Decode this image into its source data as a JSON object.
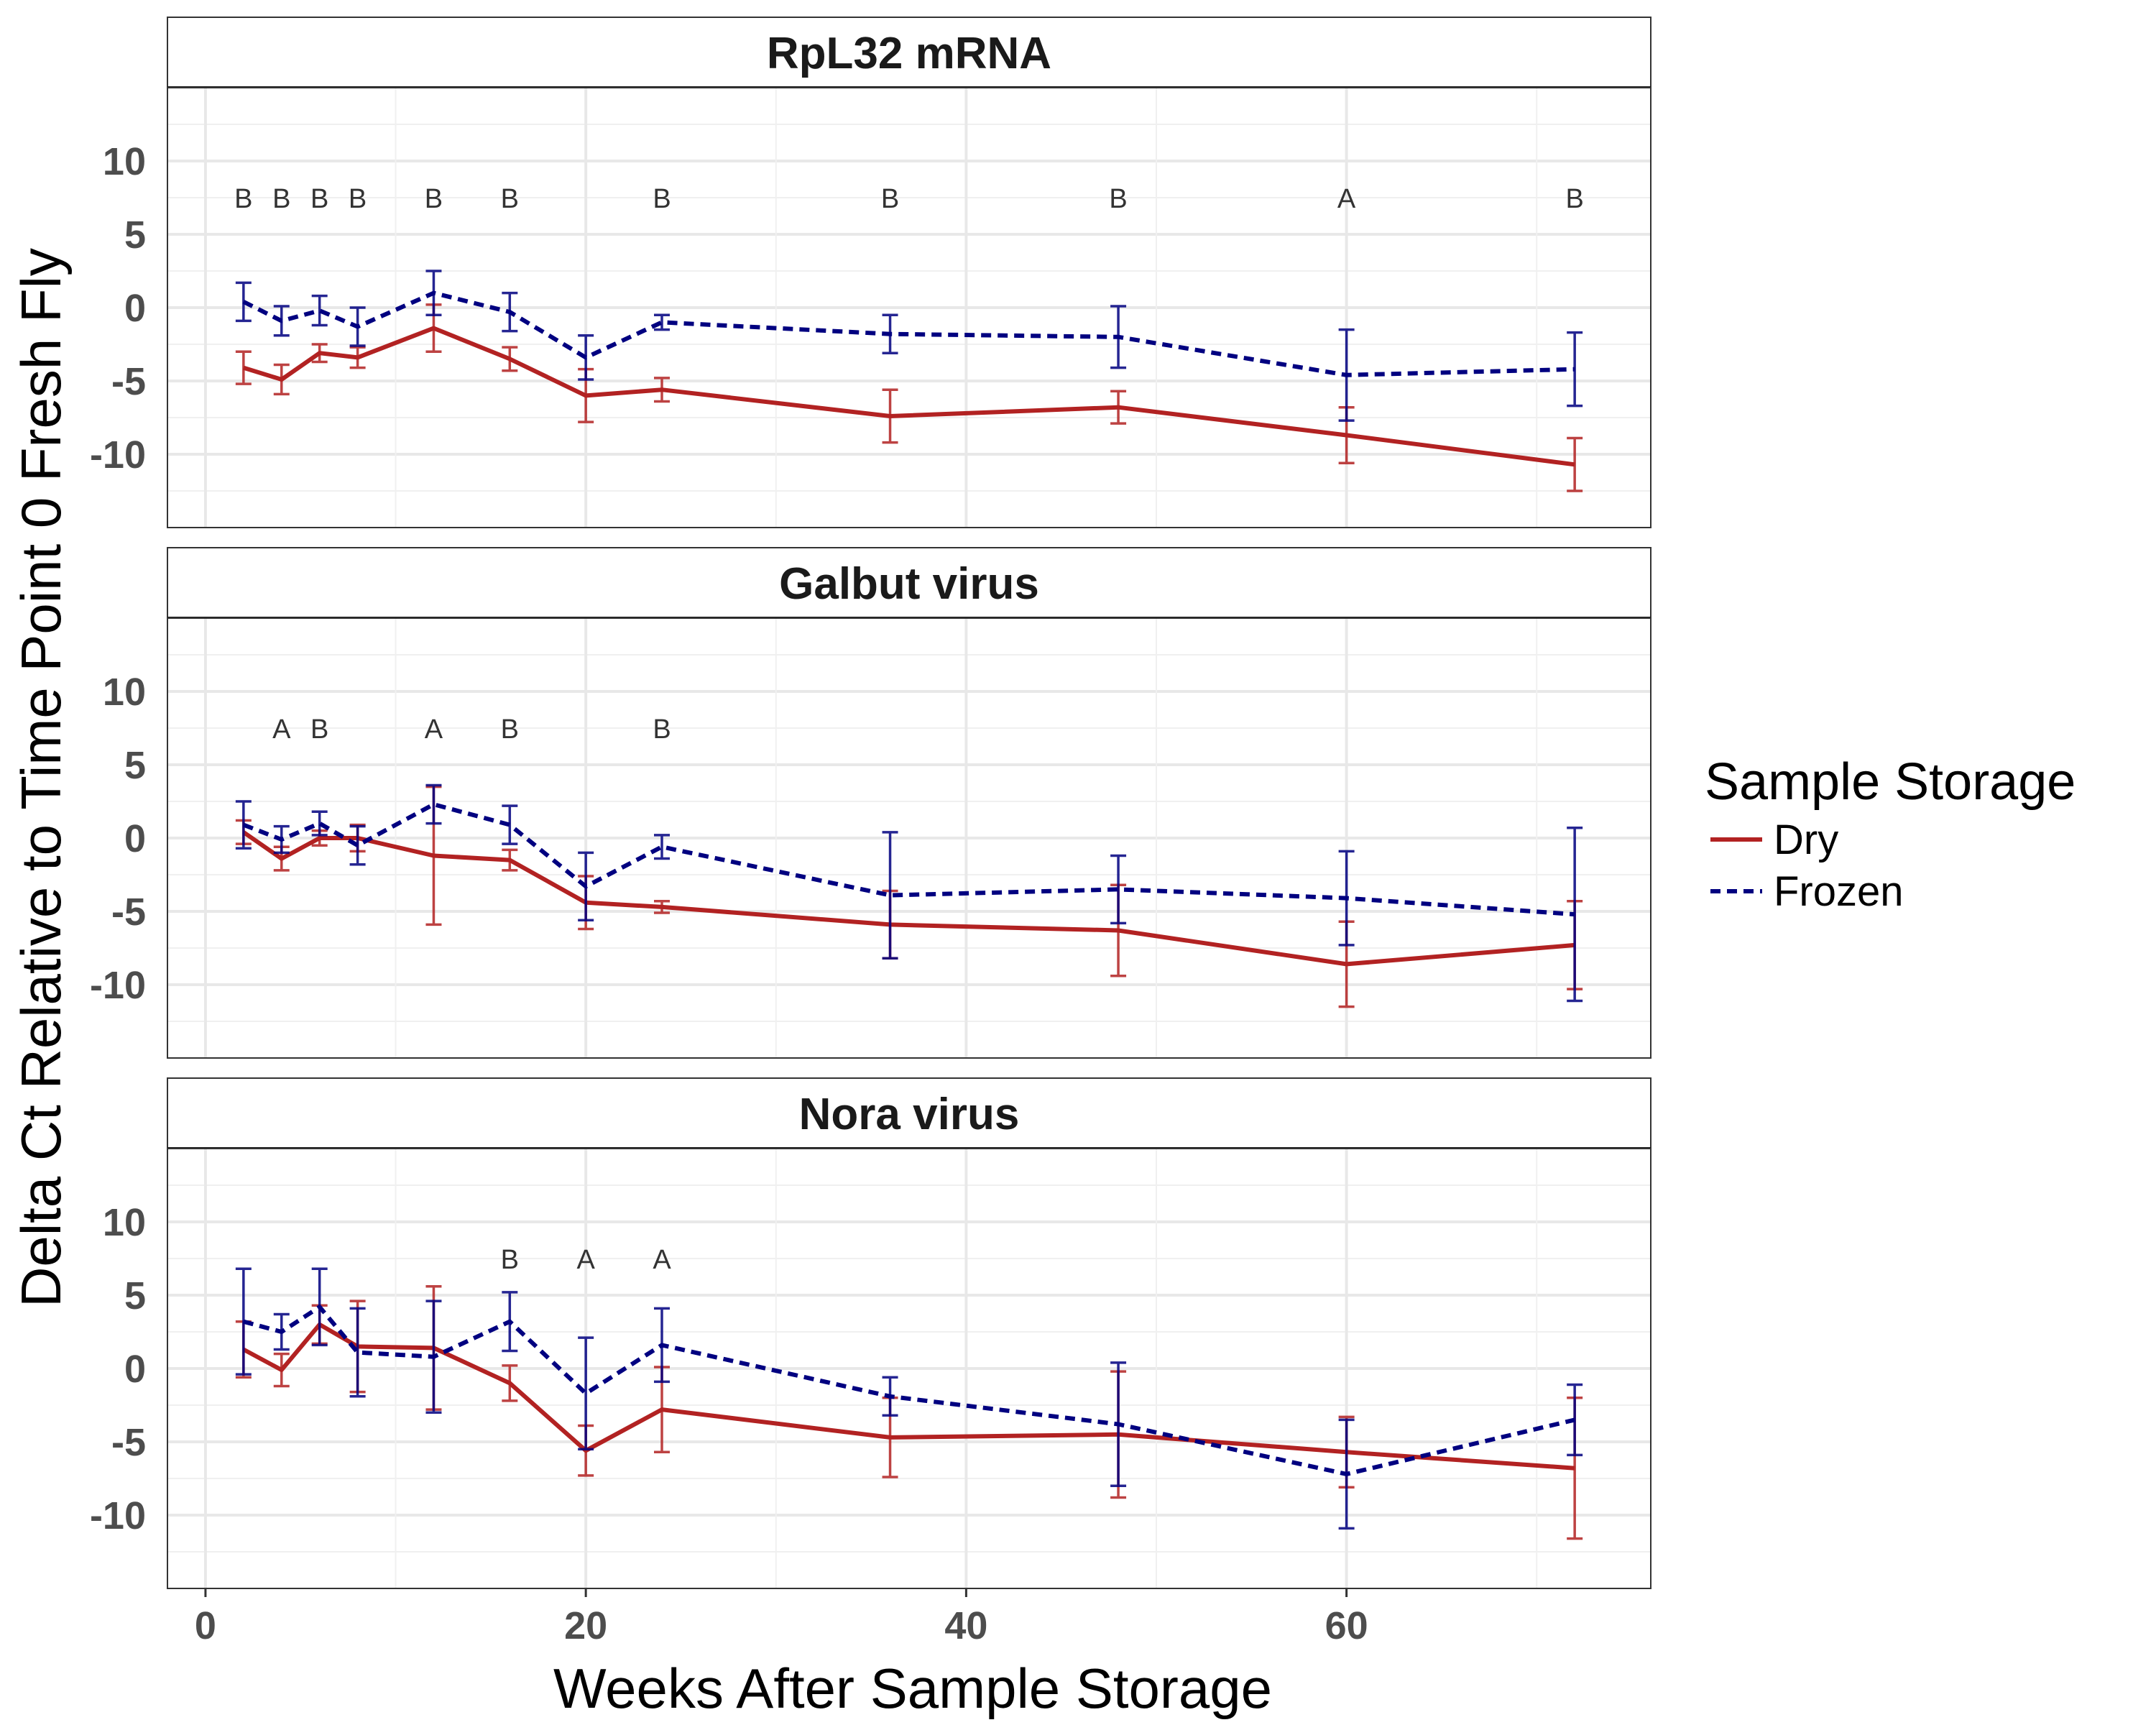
{
  "chart_data": {
    "type": "line",
    "xlabel": "Weeks After Sample Storage",
    "ylabel": "Delta Ct Relative to Time Point 0 Fresh Fly",
    "xlim": [
      -2,
      76
    ],
    "ylim": [
      -15,
      15
    ],
    "x_ticks": [
      0,
      20,
      40,
      60
    ],
    "y_ticks": [
      10,
      5,
      0,
      -5,
      -10
    ],
    "grid": true,
    "legend": {
      "title": "Sample Storage",
      "position": "right",
      "entries": [
        {
          "label": "Dry",
          "color": "#b22222",
          "dash": "solid"
        },
        {
          "label": "Frozen",
          "color": "#000080",
          "dash": "dashed"
        }
      ]
    },
    "panels": [
      {
        "title": "RpL32 mRNA",
        "series": [
          {
            "name": "Dry",
            "color": "#b22222",
            "x": [
              2,
              4,
              6,
              8,
              12,
              16,
              20,
              24,
              36,
              48,
              60,
              72
            ],
            "y": [
              -4.1,
              -4.9,
              -3.1,
              -3.4,
              -1.4,
              -3.5,
              -6.0,
              -5.6,
              -7.4,
              -6.8,
              -8.7,
              -10.7
            ],
            "err": [
              1.1,
              1.0,
              0.6,
              0.7,
              1.6,
              0.8,
              1.8,
              0.8,
              1.8,
              1.1,
              1.9,
              1.8
            ]
          },
          {
            "name": "Frozen",
            "color": "#000080",
            "x": [
              2,
              4,
              6,
              8,
              12,
              16,
              20,
              24,
              36,
              48,
              60,
              72
            ],
            "y": [
              0.4,
              -0.9,
              -0.2,
              -1.3,
              1.0,
              -0.3,
              -3.4,
              -1.0,
              -1.8,
              -2.0,
              -4.6,
              -4.2
            ],
            "err": [
              1.3,
              1.0,
              1.0,
              1.3,
              1.5,
              1.3,
              1.5,
              0.5,
              1.3,
              2.1,
              3.1,
              2.5
            ]
          }
        ],
        "labels": [
          {
            "x": 2,
            "text": "B"
          },
          {
            "x": 4,
            "text": "B"
          },
          {
            "x": 6,
            "text": "B"
          },
          {
            "x": 8,
            "text": "B"
          },
          {
            "x": 12,
            "text": "B"
          },
          {
            "x": 16,
            "text": "B"
          },
          {
            "x": 24,
            "text": "B"
          },
          {
            "x": 36,
            "text": "B"
          },
          {
            "x": 48,
            "text": "B"
          },
          {
            "x": 60,
            "text": "A"
          },
          {
            "x": 72,
            "text": "B"
          }
        ]
      },
      {
        "title": "Galbut virus",
        "series": [
          {
            "name": "Dry",
            "color": "#b22222",
            "x": [
              2,
              4,
              6,
              8,
              12,
              16,
              20,
              24,
              36,
              48,
              60,
              72
            ],
            "y": [
              0.4,
              -1.4,
              0.0,
              0.0,
              -1.2,
              -1.5,
              -4.4,
              -4.7,
              -5.9,
              -6.3,
              -8.6,
              -7.3
            ],
            "err": [
              0.8,
              0.8,
              0.5,
              0.9,
              4.7,
              0.7,
              1.8,
              0.4,
              2.3,
              3.1,
              2.9,
              3.0
            ]
          },
          {
            "name": "Frozen",
            "color": "#000080",
            "x": [
              2,
              4,
              6,
              8,
              12,
              16,
              20,
              24,
              36,
              48,
              60,
              72
            ],
            "y": [
              0.9,
              -0.1,
              1.0,
              -0.5,
              2.3,
              0.9,
              -3.3,
              -0.6,
              -3.9,
              -3.5,
              -4.1,
              -5.2
            ],
            "err": [
              1.6,
              0.9,
              0.8,
              1.3,
              1.3,
              1.3,
              2.3,
              0.8,
              4.3,
              2.3,
              3.2,
              5.9
            ]
          }
        ],
        "labels": [
          {
            "x": 4,
            "text": "A"
          },
          {
            "x": 6,
            "text": "B"
          },
          {
            "x": 12,
            "text": "A"
          },
          {
            "x": 16,
            "text": "B"
          },
          {
            "x": 24,
            "text": "B"
          }
        ]
      },
      {
        "title": "Nora virus",
        "series": [
          {
            "name": "Dry",
            "color": "#b22222",
            "x": [
              2,
              4,
              6,
              8,
              12,
              16,
              20,
              24,
              36,
              48,
              60,
              72
            ],
            "y": [
              1.3,
              -0.1,
              3.0,
              1.5,
              1.4,
              -1.0,
              -5.6,
              -2.8,
              -4.7,
              -4.5,
              -5.7,
              -6.8
            ],
            "err": [
              1.9,
              1.1,
              1.3,
              3.1,
              4.2,
              1.2,
              1.7,
              2.9,
              2.7,
              4.3,
              2.4,
              4.8
            ]
          },
          {
            "name": "Frozen",
            "color": "#000080",
            "x": [
              2,
              4,
              6,
              8,
              12,
              16,
              20,
              24,
              36,
              48,
              60,
              72
            ],
            "y": [
              3.2,
              2.5,
              4.2,
              1.1,
              0.8,
              3.2,
              -1.7,
              1.6,
              -1.9,
              -3.8,
              -7.2,
              -3.5
            ],
            "err": [
              3.6,
              1.2,
              2.6,
              3.0,
              3.8,
              2.0,
              3.8,
              2.5,
              1.3,
              4.2,
              3.7,
              2.4
            ]
          }
        ],
        "labels": [
          {
            "x": 16,
            "text": "B"
          },
          {
            "x": 20,
            "text": "A"
          },
          {
            "x": 24,
            "text": "A"
          }
        ]
      }
    ]
  }
}
